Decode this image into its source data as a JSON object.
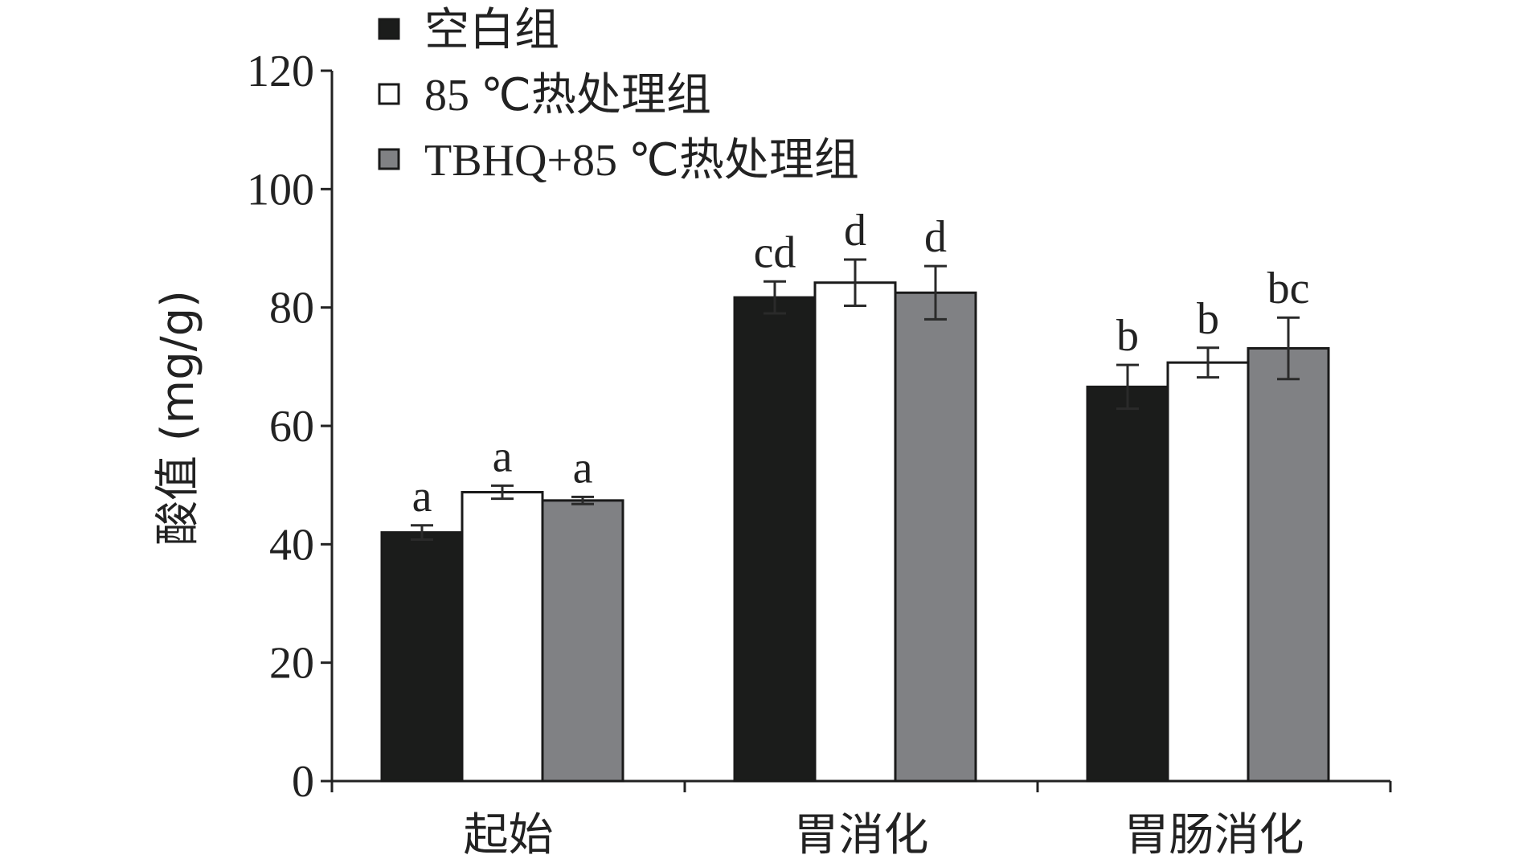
{
  "chart_data": {
    "type": "bar",
    "title": "",
    "xlabel": "",
    "ylabel": "酸值 (mg/g)",
    "ylim": [
      0,
      120
    ],
    "yticks": [
      0,
      20,
      40,
      60,
      80,
      100,
      120
    ],
    "grid": false,
    "legend_position": "top-left",
    "categories": [
      "起始",
      "胃消化",
      "胃肠消化"
    ],
    "series": [
      {
        "name": "空白组",
        "color": "#1b1c1b",
        "values": [
          42.0,
          81.7,
          66.6
        ],
        "errors": [
          1.2,
          2.7,
          3.7
        ],
        "letters": [
          "a",
          "cd",
          "b"
        ]
      },
      {
        "name": "85 ℃热处理组",
        "color": "#ffffff",
        "values": [
          48.8,
          84.2,
          70.7
        ],
        "errors": [
          1.1,
          3.9,
          2.5
        ],
        "letters": [
          "a",
          "d",
          "b"
        ]
      },
      {
        "name": "TBHQ+85 ℃热处理组",
        "color": "#808184",
        "values": [
          47.4,
          82.5,
          73.1
        ],
        "errors": [
          0.6,
          4.5,
          5.2
        ],
        "letters": [
          "a",
          "d",
          "bc"
        ]
      }
    ]
  }
}
